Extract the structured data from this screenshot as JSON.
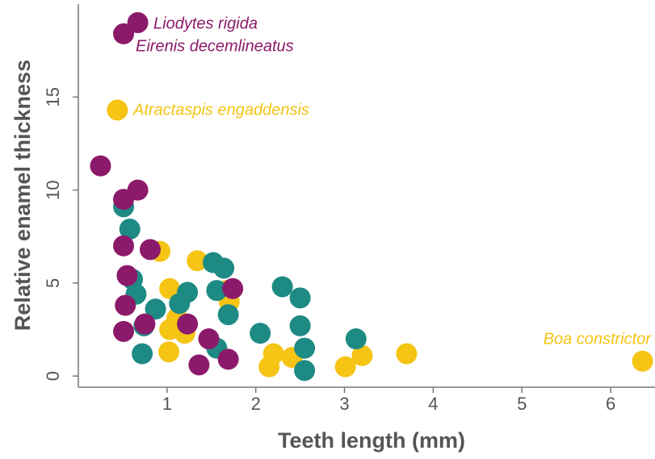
{
  "chart_data": {
    "type": "scatter",
    "xlabel": "Teeth length (mm)",
    "ylabel": "Relative enamel thickness",
    "xlim": [
      0,
      6.5
    ],
    "ylim": [
      -0.6,
      20
    ],
    "xticks": [
      1,
      2,
      3,
      4,
      5,
      6
    ],
    "yticks": [
      0,
      5,
      10,
      15
    ],
    "series": [
      {
        "color": "#f5c414",
        "x": [
          0.44,
          0.92,
          1.34,
          1.03,
          1.11,
          1.03,
          1.02,
          1.2,
          1.67,
          1.7,
          2.2,
          2.15,
          2.41,
          3.01,
          3.2,
          3.7,
          6.36
        ],
        "values": [
          14.3,
          6.7,
          6.2,
          4.7,
          3.1,
          2.5,
          1.3,
          2.3,
          4.6,
          4.0,
          1.2,
          0.5,
          1.0,
          0.5,
          1.1,
          1.2,
          0.8
        ]
      },
      {
        "color": "#1e8a84",
        "x": [
          0.51,
          0.58,
          0.61,
          0.65,
          0.74,
          0.72,
          0.87,
          1.14,
          1.23,
          1.52,
          1.64,
          1.56,
          1.69,
          1.56,
          2.05,
          2.3,
          2.5,
          2.5,
          2.55,
          2.55,
          3.13
        ],
        "values": [
          9.1,
          7.9,
          5.2,
          4.4,
          2.7,
          1.2,
          3.6,
          3.9,
          4.5,
          6.1,
          5.8,
          4.6,
          3.3,
          1.5,
          2.3,
          4.8,
          4.2,
          2.7,
          1.5,
          0.3,
          2.0
        ]
      },
      {
        "color": "#8c1a6a",
        "x": [
          0.67,
          0.51,
          0.25,
          0.67,
          0.51,
          0.51,
          0.81,
          0.55,
          0.53,
          0.75,
          0.51,
          1.23,
          1.47,
          1.36,
          1.69,
          1.74
        ],
        "values": [
          19.0,
          18.4,
          11.3,
          10.0,
          9.5,
          7.0,
          6.8,
          5.4,
          3.8,
          2.8,
          2.4,
          2.8,
          2.0,
          0.6,
          0.9,
          4.7
        ]
      }
    ],
    "annotations": [
      {
        "text": "Liodytes rigida",
        "color": "#8c1a6a"
      },
      {
        "text": "Eirenis decemlineatus",
        "color": "#8c1a6a"
      },
      {
        "text": "Atractaspis engaddensis",
        "color": "#f5c414"
      },
      {
        "text": "Boa constrictor",
        "color": "#f5c414"
      }
    ]
  }
}
